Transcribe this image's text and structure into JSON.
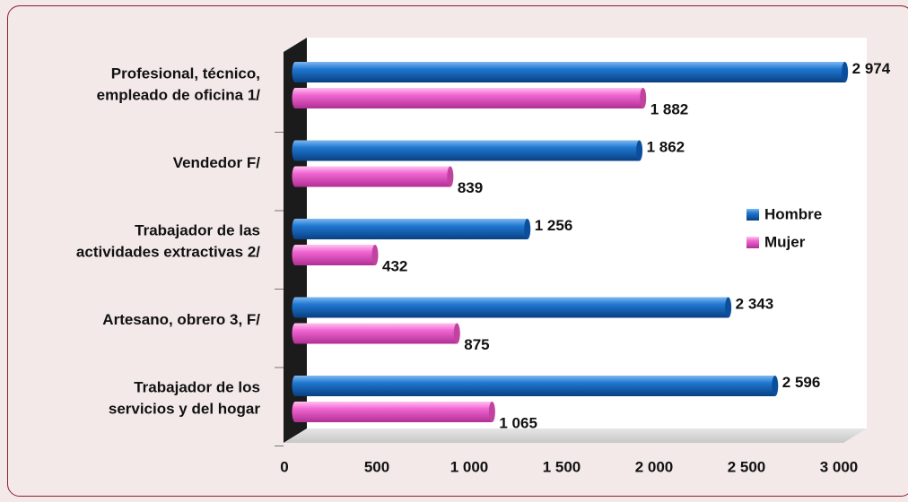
{
  "chart_data": {
    "type": "bar",
    "orientation": "horizontal",
    "style": "3d-cylinder",
    "title": "",
    "xlabel": "",
    "ylabel": "",
    "xlim": [
      0,
      3000
    ],
    "x_ticks": [
      0,
      500,
      1000,
      1500,
      2000,
      2500,
      3000
    ],
    "x_tick_labels": [
      "0",
      "500",
      "1 000",
      "1 500",
      "2 000",
      "2 500",
      "3 000"
    ],
    "categories": [
      [
        "Profesional, técnico,",
        "empleado de oficina 1/"
      ],
      [
        "Vendedor F/"
      ],
      [
        "Trabajador de las",
        "actividades extractivas 2/"
      ],
      [
        "Artesano, obrero 3, F/"
      ],
      [
        "Trabajador de los",
        "servicios y del hogar"
      ]
    ],
    "series": [
      {
        "name": "Hombre",
        "color": "#1a6fc4",
        "values": [
          2974,
          1862,
          1256,
          2343,
          2596
        ],
        "labels": [
          "2 974",
          "1 862",
          "1 256",
          "2 343",
          "2 596"
        ]
      },
      {
        "name": "Mujer",
        "color": "#ee5ccb",
        "values": [
          1882,
          839,
          432,
          875,
          1065
        ],
        "labels": [
          "1 882",
          "839",
          "432",
          "875",
          "1 065"
        ]
      }
    ],
    "legend_position": "right",
    "grid": false,
    "colors": {
      "frame_border": "#8e1c2a",
      "background": "#f3e9e9",
      "plot_wall": "#ffffff",
      "side_wall": "#1b1b1b",
      "floor": "#d4d4d4"
    }
  }
}
